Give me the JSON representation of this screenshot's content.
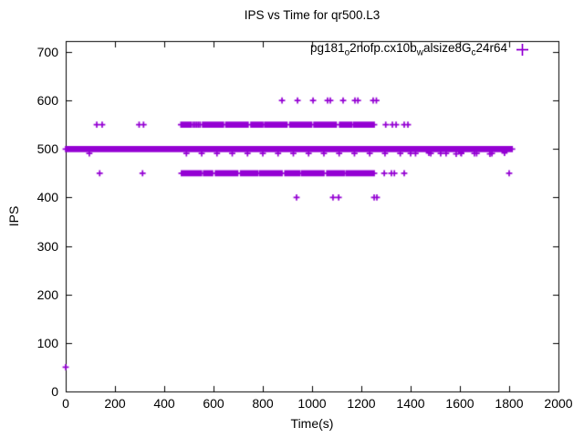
{
  "chart_data": {
    "type": "scatter",
    "title": "IPS vs Time for qr500.L3",
    "xlabel": "Time(s)",
    "ylabel": "IPS",
    "xlim": [
      0,
      2000
    ],
    "ylim": [
      0,
      700
    ],
    "xticks": [
      0,
      200,
      400,
      600,
      800,
      1000,
      1200,
      1400,
      1600,
      1800,
      2000
    ],
    "yticks": [
      0,
      100,
      200,
      300,
      400,
      500,
      600,
      700
    ],
    "grid": false,
    "border_color": "#000000",
    "legend": {
      "position": "top-right-inside",
      "marker": "+",
      "color": "#9400D3",
      "label_plain": "pg181_o2nofp.cx10b_walsize8G_c24r64",
      "label_parts": [
        {
          "text": "pg181",
          "sub": false
        },
        {
          "text": "o",
          "sub": true
        },
        {
          "text": "2nofp.cx10b",
          "sub": false
        },
        {
          "text": "w",
          "sub": true
        },
        {
          "text": "alsize8G",
          "sub": false
        },
        {
          "text": "c",
          "sub": true
        },
        {
          "text": "24r64",
          "sub": false
        }
      ]
    },
    "series": [
      {
        "name": "pg181_o2nofp.cx10b_walsize8G_c24r64",
        "marker": "+",
        "color": "#9400D3",
        "dense_segments": [
          {
            "ips": 500,
            "t_start": 0,
            "t_end": 1812,
            "t_step": 2
          },
          {
            "ips": 491,
            "t_start": 490,
            "t_end": 1780,
            "t_step": 62
          },
          {
            "ips": 550,
            "t_start": 468,
            "t_end": 510,
            "t_step": 3
          },
          {
            "ips": 550,
            "t_start": 518,
            "t_end": 548,
            "t_step": 7
          },
          {
            "ips": 550,
            "t_start": 556,
            "t_end": 640,
            "t_step": 4
          },
          {
            "ips": 550,
            "t_start": 650,
            "t_end": 742,
            "t_step": 3
          },
          {
            "ips": 550,
            "t_start": 752,
            "t_end": 800,
            "t_step": 6
          },
          {
            "ips": 550,
            "t_start": 808,
            "t_end": 900,
            "t_step": 3
          },
          {
            "ips": 550,
            "t_start": 910,
            "t_end": 1000,
            "t_step": 4
          },
          {
            "ips": 550,
            "t_start": 1008,
            "t_end": 1100,
            "t_step": 3
          },
          {
            "ips": 550,
            "t_start": 1112,
            "t_end": 1160,
            "t_step": 6
          },
          {
            "ips": 550,
            "t_start": 1168,
            "t_end": 1252,
            "t_step": 3
          },
          {
            "ips": 450,
            "t_start": 470,
            "t_end": 552,
            "t_step": 3
          },
          {
            "ips": 450,
            "t_start": 560,
            "t_end": 600,
            "t_step": 6
          },
          {
            "ips": 450,
            "t_start": 608,
            "t_end": 700,
            "t_step": 3
          },
          {
            "ips": 450,
            "t_start": 710,
            "t_end": 780,
            "t_step": 5
          },
          {
            "ips": 450,
            "t_start": 788,
            "t_end": 880,
            "t_step": 3
          },
          {
            "ips": 450,
            "t_start": 890,
            "t_end": 950,
            "t_step": 6
          },
          {
            "ips": 450,
            "t_start": 958,
            "t_end": 1050,
            "t_step": 3
          },
          {
            "ips": 450,
            "t_start": 1060,
            "t_end": 1130,
            "t_step": 5
          },
          {
            "ips": 450,
            "t_start": 1138,
            "t_end": 1252,
            "t_step": 3
          }
        ],
        "points": [
          [
            0,
            50
          ],
          [
            96,
            491
          ],
          [
            126,
            550
          ],
          [
            148,
            550
          ],
          [
            298,
            550
          ],
          [
            316,
            550
          ],
          [
            138,
            450
          ],
          [
            312,
            450
          ],
          [
            878,
            600
          ],
          [
            941,
            600
          ],
          [
            1004,
            600
          ],
          [
            1063,
            600
          ],
          [
            1074,
            600
          ],
          [
            1126,
            600
          ],
          [
            1174,
            600
          ],
          [
            1186,
            600
          ],
          [
            1248,
            600
          ],
          [
            1261,
            600
          ],
          [
            937,
            400
          ],
          [
            1085,
            400
          ],
          [
            1108,
            400
          ],
          [
            1252,
            400
          ],
          [
            1263,
            400
          ],
          [
            1299,
            550
          ],
          [
            1326,
            550
          ],
          [
            1341,
            550
          ],
          [
            1374,
            550
          ],
          [
            1389,
            550
          ],
          [
            1293,
            450
          ],
          [
            1322,
            450
          ],
          [
            1334,
            450
          ],
          [
            1374,
            450
          ],
          [
            1800,
            450
          ],
          [
            1400,
            491
          ],
          [
            1474,
            492
          ],
          [
            1522,
            491
          ],
          [
            1585,
            490
          ],
          [
            1604,
            492
          ],
          [
            1659,
            491
          ],
          [
            1722,
            490
          ],
          [
            1781,
            492
          ]
        ]
      }
    ]
  }
}
